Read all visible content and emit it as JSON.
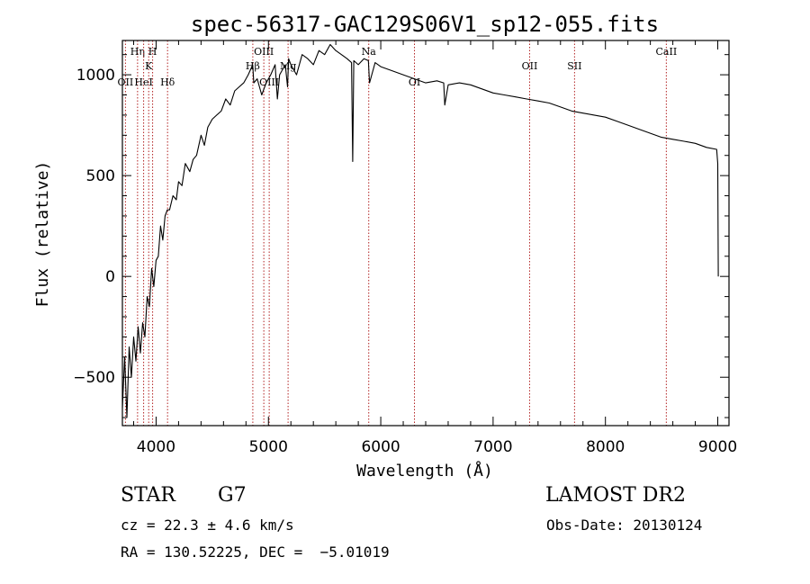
{
  "chart_data": {
    "type": "line",
    "title": "spec-56317-GAC129S06V1_sp12-055.fits",
    "xlabel": "Wavelength (Å)",
    "ylabel": "Flux (relative)",
    "xlim": [
      3700,
      9100
    ],
    "ylim": [
      -740,
      1170
    ],
    "x_ticks": [
      4000,
      5000,
      6000,
      7000,
      8000,
      9000
    ],
    "y_ticks": [
      -500,
      0,
      500,
      1000
    ],
    "x_tick_labels": [
      "4000",
      "5000",
      "6000",
      "7000",
      "8000",
      "9000"
    ],
    "y_tick_labels": [
      "−500",
      "0",
      "500",
      "1000"
    ],
    "grid": false,
    "line_color": "#000000",
    "marker_color": "#b22222",
    "series": [
      {
        "name": "spectrum",
        "x": [
          3700,
          3720,
          3740,
          3760,
          3780,
          3800,
          3820,
          3840,
          3860,
          3880,
          3900,
          3920,
          3940,
          3960,
          3980,
          4000,
          4020,
          4040,
          4060,
          4080,
          4100,
          4120,
          4150,
          4180,
          4200,
          4230,
          4260,
          4300,
          4330,
          4360,
          4400,
          4430,
          4460,
          4500,
          4540,
          4580,
          4620,
          4660,
          4700,
          4740,
          4780,
          4820,
          4860,
          4870,
          4900,
          4940,
          4980,
          5020,
          5060,
          5080,
          5100,
          5150,
          5170,
          5180,
          5200,
          5250,
          5300,
          5350,
          5400,
          5450,
          5500,
          5550,
          5600,
          5650,
          5700,
          5740,
          5750,
          5760,
          5800,
          5850,
          5890,
          5900,
          5950,
          6000,
          6100,
          6200,
          6300,
          6400,
          6500,
          6560,
          6570,
          6600,
          6700,
          6800,
          6900,
          7000,
          7100,
          7200,
          7300,
          7400,
          7500,
          7600,
          7700,
          7800,
          7900,
          8000,
          8100,
          8200,
          8300,
          8400,
          8500,
          8600,
          8700,
          8800,
          8900,
          8990,
          9000,
          9005
        ],
        "y": [
          -650,
          -400,
          -700,
          -350,
          -500,
          -300,
          -420,
          -250,
          -380,
          -230,
          -300,
          -100,
          -150,
          40,
          -50,
          80,
          100,
          250,
          180,
          300,
          330,
          330,
          400,
          380,
          470,
          450,
          560,
          520,
          580,
          600,
          700,
          650,
          740,
          780,
          800,
          820,
          880,
          850,
          920,
          940,
          960,
          1000,
          1050,
          960,
          980,
          900,
          960,
          1000,
          1050,
          880,
          1000,
          1050,
          940,
          1080,
          1050,
          1000,
          1100,
          1080,
          1050,
          1120,
          1100,
          1150,
          1120,
          1100,
          1080,
          1060,
          570,
          1070,
          1050,
          1080,
          1070,
          960,
          1060,
          1040,
          1020,
          1000,
          980,
          960,
          970,
          960,
          850,
          950,
          960,
          950,
          930,
          910,
          900,
          890,
          880,
          870,
          860,
          840,
          820,
          810,
          800,
          790,
          770,
          750,
          730,
          710,
          690,
          680,
          670,
          660,
          640,
          630,
          560,
          0
        ]
      }
    ],
    "line_markers": [
      {
        "label": "OII",
        "wave": 3727,
        "row": 3
      },
      {
        "label": "Hη",
        "wave": 3835,
        "row": 1
      },
      {
        "label": "HeI",
        "wave": 3889,
        "row": 3
      },
      {
        "label": "K",
        "wave": 3934,
        "row": 2
      },
      {
        "label": "H",
        "wave": 3969,
        "row": 1
      },
      {
        "label": "Hδ",
        "wave": 4102,
        "row": 3
      },
      {
        "label": "Hβ",
        "wave": 4861,
        "row": 2
      },
      {
        "label": "OIII",
        "wave": 4959,
        "row": 1
      },
      {
        "label": "OIII",
        "wave": 5007,
        "row": 3
      },
      {
        "label": "Mg",
        "wave": 5175,
        "row": 2
      },
      {
        "label": "Na",
        "wave": 5893,
        "row": 1
      },
      {
        "label": "OI",
        "wave": 6300,
        "row": 3
      },
      {
        "label": "OII",
        "wave": 7325,
        "row": 2
      },
      {
        "label": "SII",
        "wave": 7725,
        "row": 2
      },
      {
        "label": "CaII",
        "wave": 8542,
        "row": 1
      }
    ]
  },
  "info": {
    "object_class": "STAR",
    "subclass": "G7",
    "survey": "LAMOST DR2",
    "redshift_line": "cz = 22.3 ± 4.6 km/s",
    "obs_date_line": "Obs-Date: 20130124",
    "coords_line": "RA = 130.52225, DEC =  −5.01019"
  }
}
